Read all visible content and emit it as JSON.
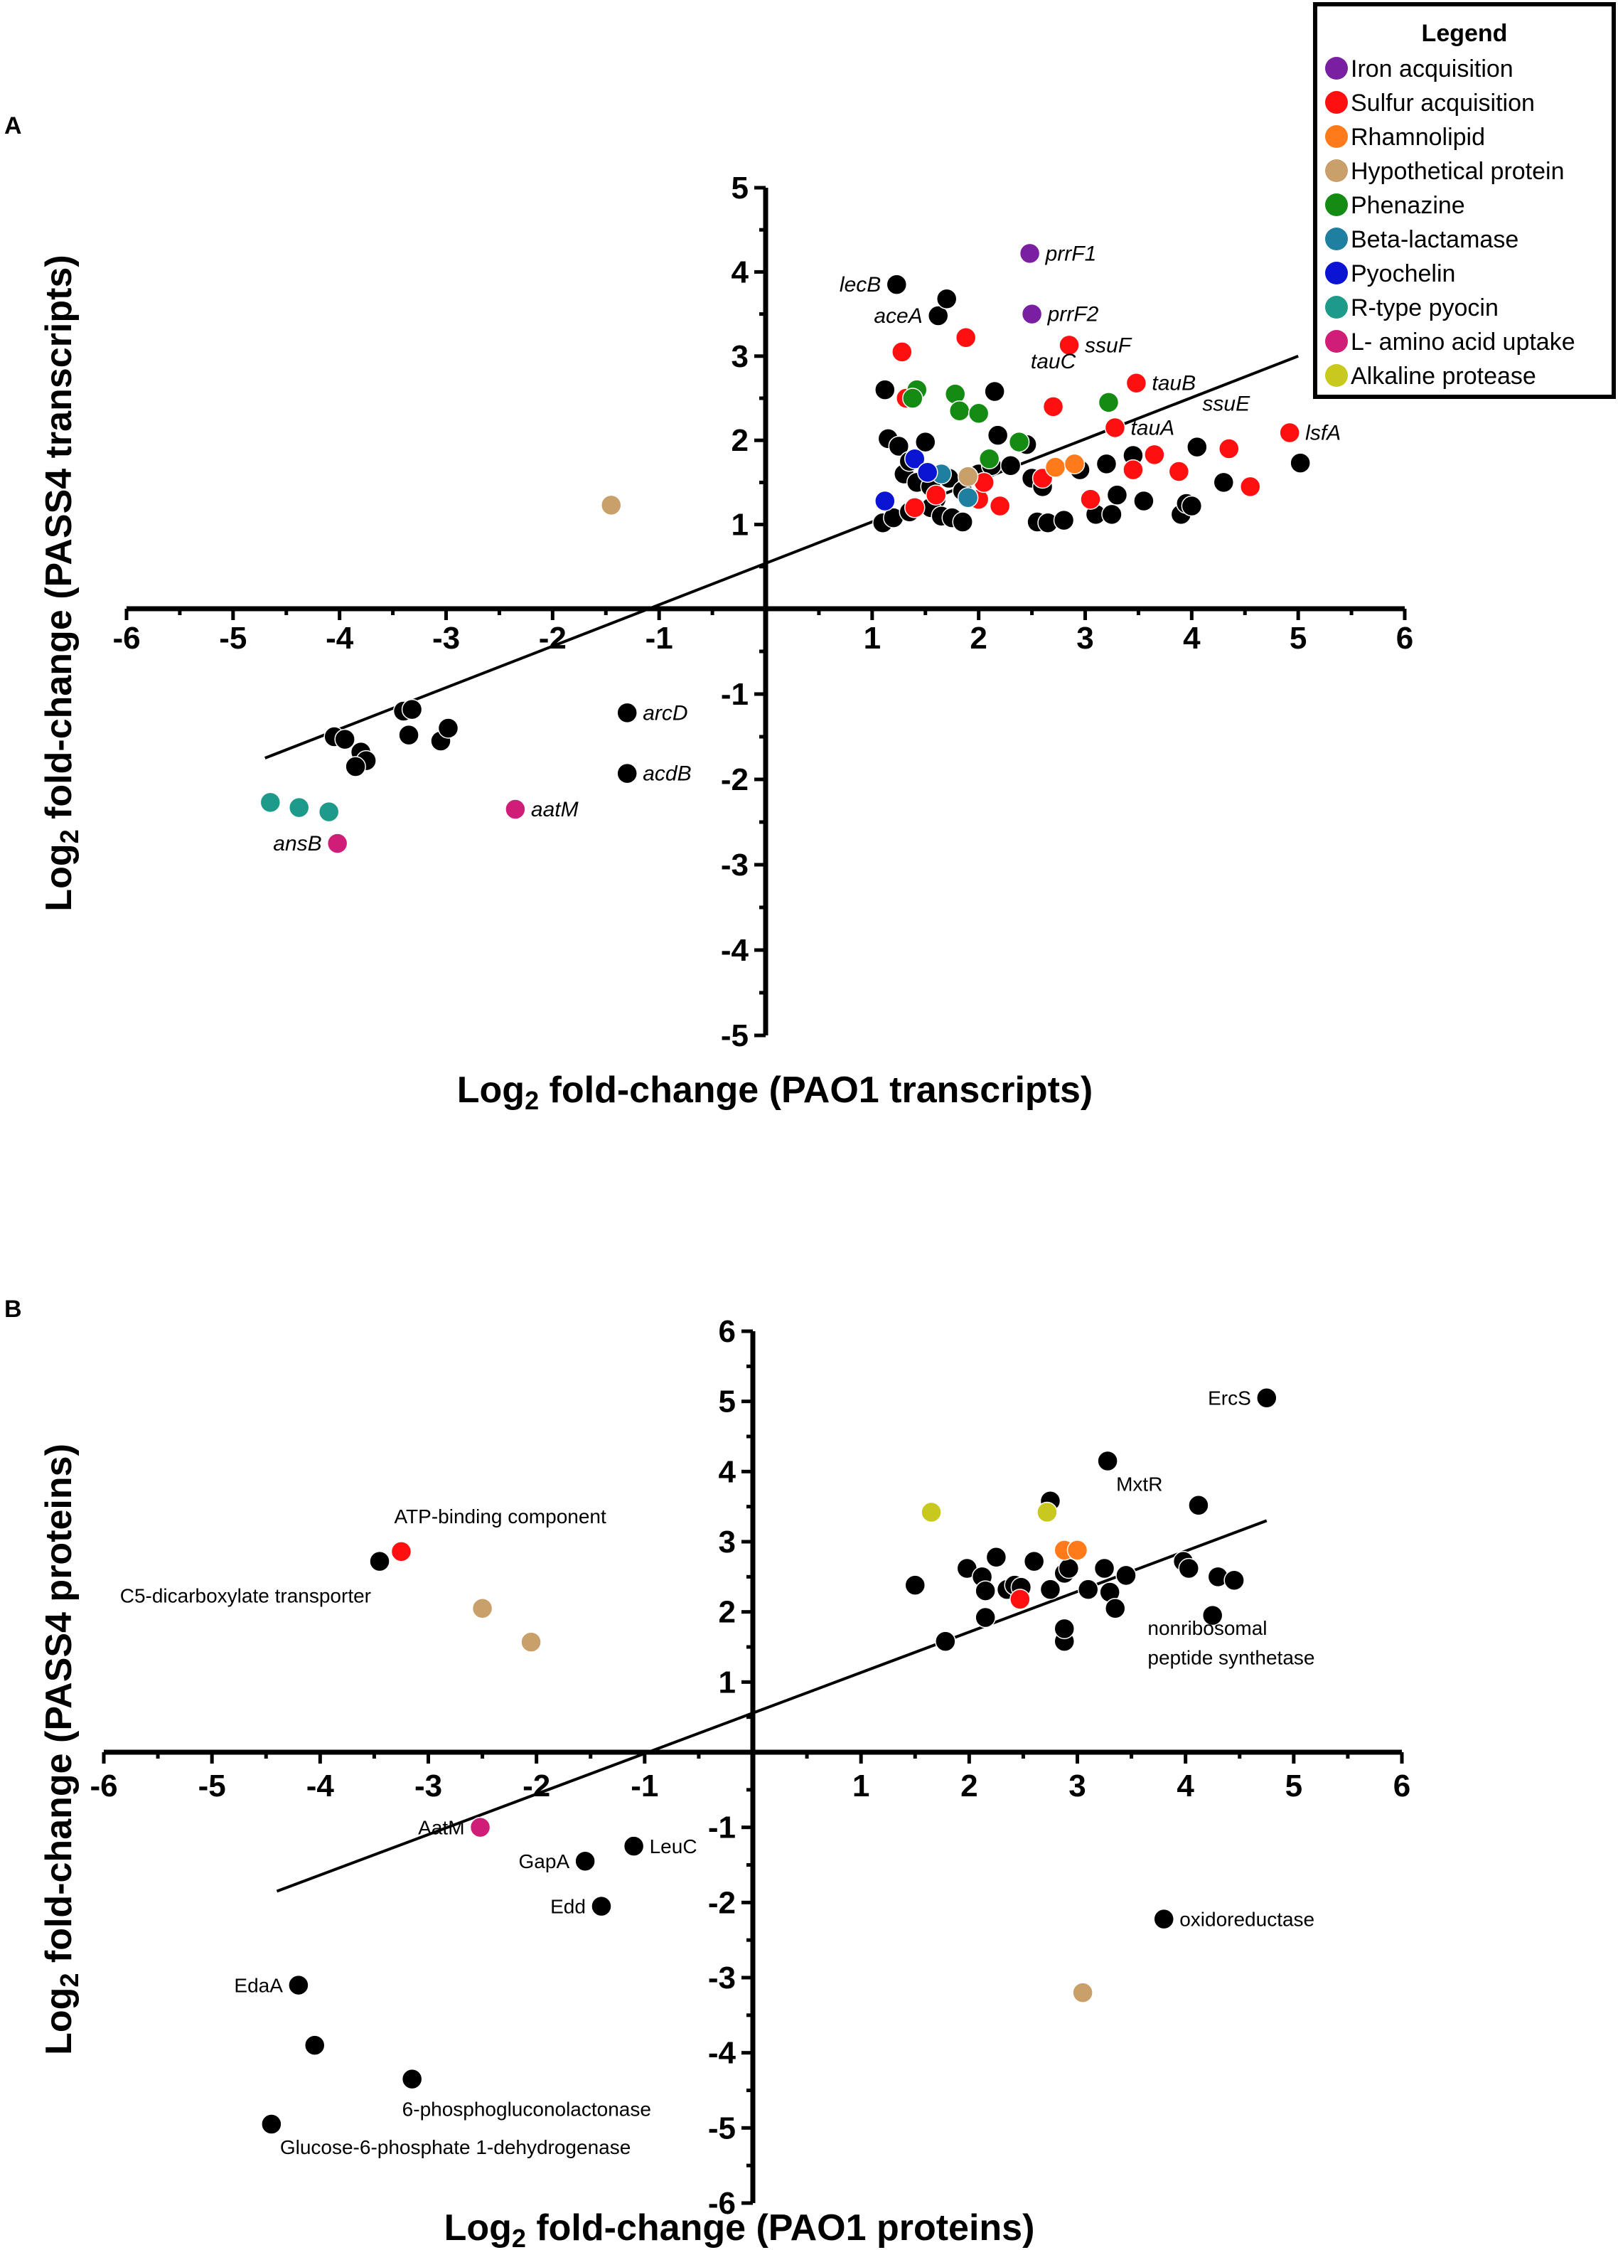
{
  "legend": {
    "title": "Legend",
    "entries": [
      {
        "label": "Iron acquisition",
        "color": "#7b1fa2"
      },
      {
        "label": "Sulfur acquisition",
        "color": "#ff0f0f"
      },
      {
        "label": "Rhamnolipid",
        "color": "#ff7a1a"
      },
      {
        "label": "Hypothetical protein",
        "color": "#c9a06a"
      },
      {
        "label": "Phenazine",
        "color": "#148c14"
      },
      {
        "label": "Beta-lactamase",
        "color": "#1e7fa0"
      },
      {
        "label": "Pyochelin",
        "color": "#0a14d2"
      },
      {
        "label": "R-type pyocin",
        "color": "#1e9a8a"
      },
      {
        "label": "L- amino acid uptake",
        "color": "#d01e78"
      },
      {
        "label": "Alkaline protease",
        "color": "#c8c81e"
      }
    ]
  },
  "chart_data": [
    {
      "type": "scatter",
      "panel": "A",
      "xlabel_main": "Log",
      "xlabel_sub": "2",
      "xlabel_rest": " fold-change (PAO1 transcripts)",
      "ylabel_main": "Log",
      "ylabel_sub": "2",
      "ylabel_rest": " fold-change (PASS4 transcripts)",
      "xlim": [
        -6,
        6
      ],
      "ylim": [
        -5,
        5
      ],
      "x_ticks": [
        "-6",
        "-5",
        "-4",
        "-3",
        "-2",
        "-1",
        "1",
        "2",
        "3",
        "4",
        "5",
        "6"
      ],
      "y_ticks": [
        "-5",
        "-4",
        "-3",
        "-2",
        "-1",
        "1",
        "2",
        "3",
        "4",
        "5"
      ],
      "regression": {
        "x": [
          -4.7,
          5.0
        ],
        "y": [
          -1.75,
          3.0
        ]
      },
      "series": [
        {
          "name": "Other",
          "color": "#000000",
          "points": [
            [
              1.23,
              3.85
            ],
            [
              1.62,
              3.48
            ],
            [
              1.7,
              3.68
            ],
            [
              1.12,
              2.6
            ],
            [
              2.15,
              2.58
            ],
            [
              1.15,
              2.02
            ],
            [
              1.25,
              1.93
            ],
            [
              1.5,
              1.98
            ],
            [
              2.18,
              2.06
            ],
            [
              2.45,
              1.95
            ],
            [
              1.3,
              1.6
            ],
            [
              1.35,
              1.75
            ],
            [
              1.42,
              1.5
            ],
            [
              1.55,
              1.45
            ],
            [
              1.6,
              1.3
            ],
            [
              1.72,
              1.55
            ],
            [
              1.85,
              1.4
            ],
            [
              2.0,
              1.6
            ],
            [
              2.12,
              1.7
            ],
            [
              2.3,
              1.7
            ],
            [
              2.5,
              1.55
            ],
            [
              2.6,
              1.45
            ],
            [
              2.95,
              1.65
            ],
            [
              3.2,
              1.72
            ],
            [
              3.45,
              1.82
            ],
            [
              1.1,
              1.02
            ],
            [
              1.2,
              1.08
            ],
            [
              1.35,
              1.15
            ],
            [
              1.55,
              1.2
            ],
            [
              1.65,
              1.1
            ],
            [
              1.75,
              1.08
            ],
            [
              1.85,
              1.03
            ],
            [
              2.55,
              1.03
            ],
            [
              2.65,
              1.02
            ],
            [
              2.8,
              1.05
            ],
            [
              3.1,
              1.12
            ],
            [
              3.25,
              1.12
            ],
            [
              3.3,
              1.35
            ],
            [
              3.55,
              1.28
            ],
            [
              3.9,
              1.12
            ],
            [
              3.95,
              1.25
            ],
            [
              4.0,
              1.22
            ],
            [
              4.3,
              1.5
            ],
            [
              4.05,
              1.92
            ],
            [
              5.02,
              1.73
            ],
            [
              -4.05,
              -1.5
            ],
            [
              -3.95,
              -1.53
            ],
            [
              -3.8,
              -1.68
            ],
            [
              -3.75,
              -1.78
            ],
            [
              -3.85,
              -1.85
            ],
            [
              -3.4,
              -1.2
            ],
            [
              -3.32,
              -1.18
            ],
            [
              -3.35,
              -1.48
            ],
            [
              -3.05,
              -1.55
            ],
            [
              -2.98,
              -1.4
            ],
            [
              -1.3,
              -1.22
            ],
            [
              -1.3,
              -1.93
            ]
          ]
        },
        {
          "name": "Iron acquisition",
          "color": "#7b1fa2",
          "points": [
            [
              2.48,
              4.22
            ],
            [
              2.5,
              3.5
            ]
          ]
        },
        {
          "name": "Sulfur acquisition",
          "color": "#ff0f0f",
          "points": [
            [
              1.28,
              3.05
            ],
            [
              1.88,
              3.22
            ],
            [
              2.85,
              3.13
            ],
            [
              2.7,
              2.4
            ],
            [
              3.48,
              2.68
            ],
            [
              3.28,
              2.15
            ],
            [
              4.92,
              2.09
            ],
            [
              4.35,
              1.9
            ],
            [
              3.65,
              1.83
            ],
            [
              3.45,
              1.65
            ],
            [
              3.88,
              1.63
            ],
            [
              4.55,
              1.45
            ],
            [
              1.32,
              2.5
            ],
            [
              1.4,
              1.2
            ],
            [
              1.6,
              1.35
            ],
            [
              2.0,
              1.3
            ],
            [
              2.2,
              1.22
            ],
            [
              2.6,
              1.55
            ],
            [
              3.05,
              1.3
            ],
            [
              2.05,
              1.5
            ]
          ]
        },
        {
          "name": "Rhamnolipid",
          "color": "#ff7a1a",
          "points": [
            [
              2.72,
              1.68
            ],
            [
              2.9,
              1.72
            ]
          ]
        },
        {
          "name": "Hypothetical protein",
          "color": "#c9a06a",
          "points": [
            [
              -1.45,
              1.23
            ],
            [
              1.9,
              1.57
            ]
          ]
        },
        {
          "name": "Phenazine",
          "color": "#148c14",
          "points": [
            [
              1.42,
              2.6
            ],
            [
              1.38,
              2.5
            ],
            [
              1.78,
              2.55
            ],
            [
              1.82,
              2.35
            ],
            [
              2.0,
              2.32
            ],
            [
              2.38,
              1.98
            ],
            [
              3.22,
              2.45
            ],
            [
              2.1,
              1.78
            ]
          ]
        },
        {
          "name": "Beta-lactamase",
          "color": "#1e7fa0",
          "points": [
            [
              1.65,
              1.6
            ],
            [
              1.9,
              1.32
            ]
          ]
        },
        {
          "name": "Pyochelin",
          "color": "#0a14d2",
          "points": [
            [
              1.12,
              1.28
            ],
            [
              1.4,
              1.78
            ],
            [
              1.52,
              1.62
            ]
          ]
        },
        {
          "name": "R-type pyocin",
          "color": "#1e9a8a",
          "points": [
            [
              -4.65,
              -2.27
            ],
            [
              -4.38,
              -2.33
            ],
            [
              -4.1,
              -2.38
            ]
          ]
        },
        {
          "name": "L- amino acid uptake",
          "color": "#d01e78",
          "points": [
            [
              -4.02,
              -2.75
            ],
            [
              -2.35,
              -2.35
            ]
          ]
        }
      ],
      "annotations": [
        {
          "text": "prrF1",
          "x": 2.48,
          "y": 4.22,
          "side": "right"
        },
        {
          "text": "prrF2",
          "x": 2.5,
          "y": 3.5,
          "side": "right"
        },
        {
          "text": "lecB",
          "x": 1.23,
          "y": 3.85,
          "side": "left"
        },
        {
          "text": "aceA",
          "x": 1.62,
          "y": 3.48,
          "side": "left"
        },
        {
          "text": "ssuF",
          "x": 2.85,
          "y": 3.13,
          "side": "right"
        },
        {
          "text": "tauC",
          "x": 2.7,
          "y": 2.6,
          "side": "above"
        },
        {
          "text": "tauB",
          "x": 3.48,
          "y": 2.68,
          "side": "right"
        },
        {
          "text": "tauA",
          "x": 3.28,
          "y": 2.15,
          "side": "right"
        },
        {
          "text": "ssuE",
          "x": 4.35,
          "y": 2.1,
          "side": "aboveleft"
        },
        {
          "text": "lsfA",
          "x": 4.92,
          "y": 2.09,
          "side": "right"
        },
        {
          "text": "arcD",
          "x": -1.3,
          "y": -1.22,
          "side": "right"
        },
        {
          "text": "acdB",
          "x": -1.3,
          "y": -1.93,
          "side": "right"
        },
        {
          "text": "aatM",
          "x": -2.35,
          "y": -2.35,
          "side": "right"
        },
        {
          "text": "ansB",
          "x": -4.02,
          "y": -2.75,
          "side": "left"
        }
      ]
    },
    {
      "type": "scatter",
      "panel": "B",
      "xlabel_main": "Log",
      "xlabel_sub": "2",
      "xlabel_rest": " fold-change (PAO1 proteins)",
      "ylabel_main": "Log",
      "ylabel_sub": "2",
      "ylabel_rest": " fold-change (PASS4 proteins)",
      "xlim": [
        -6,
        6
      ],
      "ylim": [
        -6,
        6
      ],
      "x_ticks": [
        "-6",
        "-5",
        "-4",
        "-3",
        "-2",
        "-1",
        "1",
        "2",
        "3",
        "4",
        "5",
        "6"
      ],
      "y_ticks": [
        "-6",
        "-5",
        "-4",
        "-3",
        "-2",
        "-1",
        "1",
        "2",
        "3",
        "4",
        "5",
        "6"
      ],
      "regression": {
        "x": [
          -4.4,
          4.75
        ],
        "y": [
          -1.85,
          3.3
        ]
      },
      "series": [
        {
          "name": "Other",
          "color": "#000000",
          "points": [
            [
              4.75,
              5.05
            ],
            [
              3.28,
              4.15
            ],
            [
              2.75,
              3.58
            ],
            [
              4.12,
              3.52
            ],
            [
              1.5,
              2.38
            ],
            [
              1.98,
              2.62
            ],
            [
              2.12,
              2.5
            ],
            [
              2.15,
              2.3
            ],
            [
              2.25,
              2.78
            ],
            [
              2.35,
              2.32
            ],
            [
              2.42,
              2.38
            ],
            [
              2.48,
              2.35
            ],
            [
              2.6,
              2.72
            ],
            [
              2.75,
              2.32
            ],
            [
              2.88,
              2.55
            ],
            [
              2.92,
              2.62
            ],
            [
              3.1,
              2.32
            ],
            [
              3.25,
              2.62
            ],
            [
              3.3,
              2.28
            ],
            [
              3.35,
              2.05
            ],
            [
              3.45,
              2.52
            ],
            [
              3.98,
              2.72
            ],
            [
              4.03,
              2.62
            ],
            [
              4.25,
              1.95
            ],
            [
              4.3,
              2.5
            ],
            [
              4.45,
              2.45
            ],
            [
              2.15,
              1.92
            ],
            [
              1.78,
              1.58
            ],
            [
              2.88,
              1.58
            ],
            [
              2.88,
              1.76
            ],
            [
              -3.45,
              2.72
            ],
            [
              -1.1,
              -1.25
            ],
            [
              -1.55,
              -1.45
            ],
            [
              -1.4,
              -2.05
            ],
            [
              -4.2,
              -3.1
            ],
            [
              -4.05,
              -3.9
            ],
            [
              -3.15,
              -4.35
            ],
            [
              -4.45,
              -4.95
            ],
            [
              3.8,
              -2.22
            ]
          ]
        },
        {
          "name": "Sulfur acquisition",
          "color": "#ff0f0f",
          "points": [
            [
              -3.25,
              2.86
            ],
            [
              2.47,
              2.18
            ]
          ]
        },
        {
          "name": "Rhamnolipid",
          "color": "#ff7a1a",
          "points": [
            [
              2.88,
              2.88
            ],
            [
              3.0,
              2.88
            ]
          ]
        },
        {
          "name": "Hypothetical protein",
          "color": "#c9a06a",
          "points": [
            [
              -2.5,
              2.05
            ],
            [
              -2.05,
              1.57
            ],
            [
              3.05,
              -3.2
            ]
          ]
        },
        {
          "name": "L- amino acid uptake",
          "color": "#d01e78",
          "points": [
            [
              -2.52,
              -1.0
            ]
          ]
        },
        {
          "name": "Alkaline protease",
          "color": "#c8c81e",
          "points": [
            [
              1.65,
              3.42
            ],
            [
              2.72,
              3.42
            ]
          ]
        }
      ],
      "annotations": [
        {
          "text": "ErcS",
          "x": 4.75,
          "y": 5.05,
          "side": "left"
        },
        {
          "text": "MxtR",
          "x": 3.28,
          "y": 4.15,
          "side": "belowright"
        },
        {
          "text": "ATP-binding component",
          "x": -3.25,
          "y": 2.86,
          "side": "aboveright"
        },
        {
          "text": "C5-dicarboxylate transporter",
          "x": -3.45,
          "y": 2.72,
          "side": "belowleft"
        },
        {
          "text": "nonribosomal",
          "x": 3.65,
          "y": 1.67,
          "side": "plain"
        },
        {
          "text": "peptide synthetase",
          "x": 3.65,
          "y": 1.25,
          "side": "plain"
        },
        {
          "text": "AatM",
          "x": -2.52,
          "y": -1.0,
          "side": "left"
        },
        {
          "text": "LeuC",
          "x": -1.1,
          "y": -1.25,
          "side": "right"
        },
        {
          "text": "GapA",
          "x": -1.55,
          "y": -1.45,
          "side": "left"
        },
        {
          "text": "Edd",
          "x": -1.4,
          "y": -2.05,
          "side": "left"
        },
        {
          "text": "EdaA",
          "x": -4.2,
          "y": -3.1,
          "side": "left"
        },
        {
          "text": "oxidoreductase",
          "x": 3.8,
          "y": -2.22,
          "side": "right"
        },
        {
          "text": "6-phosphogluconolactonase",
          "x": -3.15,
          "y": -4.35,
          "side": "below"
        },
        {
          "text": "Glucose-6-phosphate 1-dehydrogenase",
          "x": -4.45,
          "y": -4.95,
          "side": "belowright"
        }
      ]
    }
  ]
}
